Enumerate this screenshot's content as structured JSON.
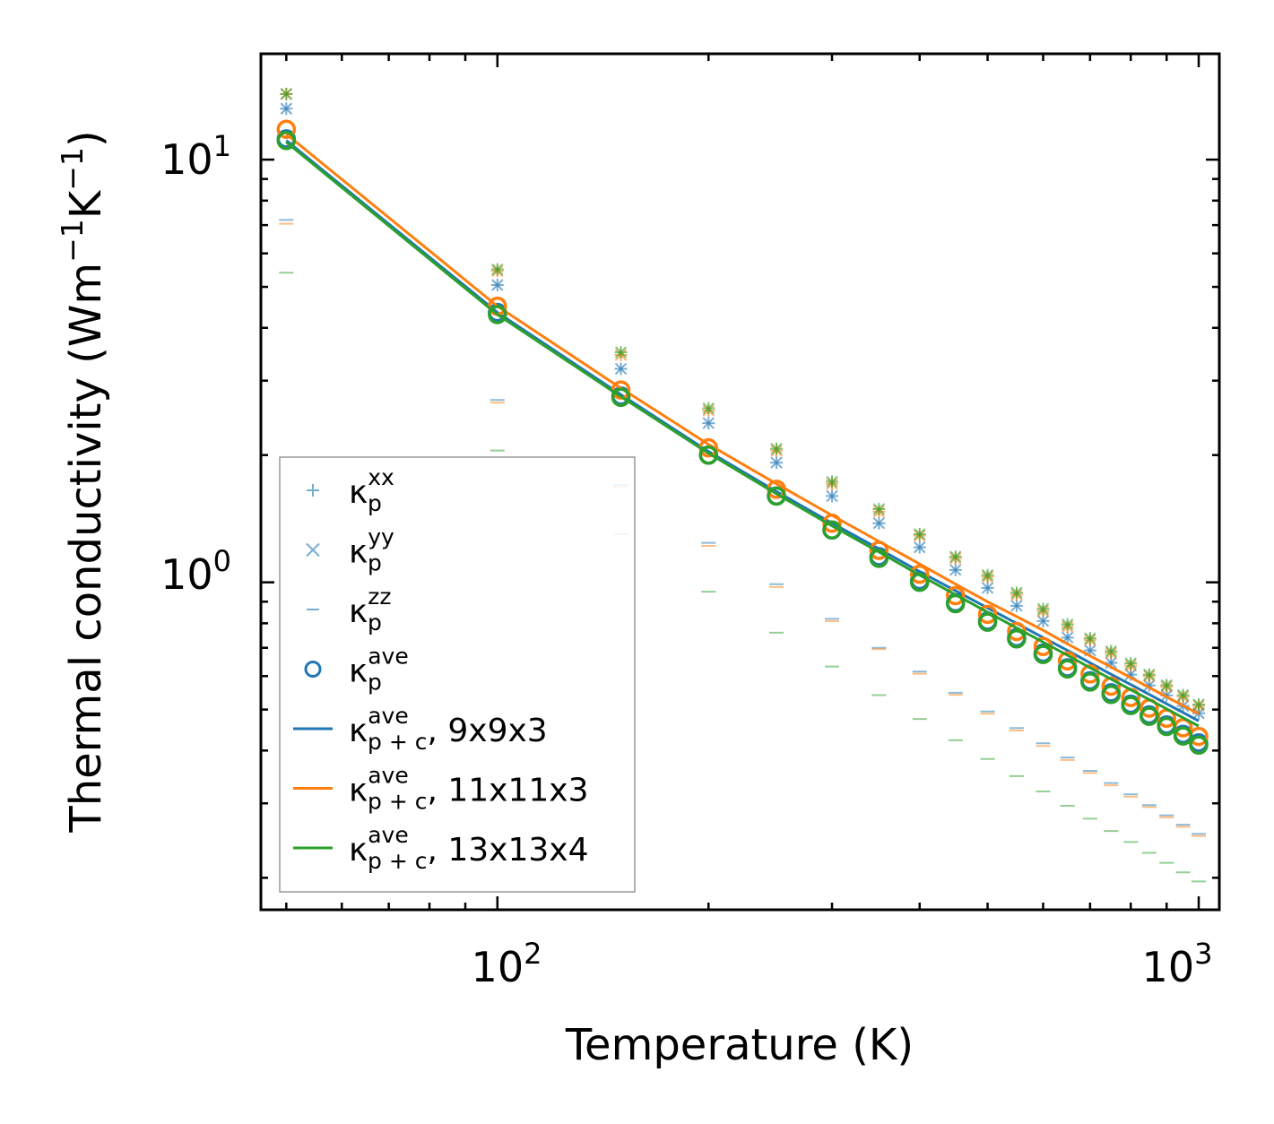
{
  "chart_data": {
    "type": "scatter",
    "title": "",
    "xlabel": "Temperature (K)",
    "ylabel_main": "Thermal conductivity (Wm",
    "ylabel_exp1": "−1",
    "ylabel_mid": "K",
    "ylabel_exp2": "−1",
    "ylabel_end": ")",
    "xscale": "log",
    "yscale": "log",
    "xlim": [
      46,
      1070
    ],
    "ylim": [
      0.168,
      17.8
    ],
    "x_tick_labels": [
      {
        "value": 100,
        "base": "10",
        "exp": "2"
      },
      {
        "value": 1000,
        "base": "10",
        "exp": "3"
      }
    ],
    "y_tick_labels": [
      {
        "value": 1,
        "base": "10",
        "exp": "0"
      },
      {
        "value": 10,
        "base": "10",
        "exp": "1"
      }
    ],
    "legend_location": "lower-left",
    "x": [
      50,
      100,
      150,
      200,
      250,
      300,
      350,
      400,
      450,
      500,
      550,
      600,
      650,
      700,
      750,
      800,
      850,
      900,
      950,
      1000
    ],
    "series": [
      {
        "name": "9x9x3",
        "color": "#1f77b4",
        "kxx": [
          13.2,
          5.05,
          3.2,
          2.38,
          1.92,
          1.6,
          1.38,
          1.21,
          1.07,
          0.97,
          0.88,
          0.81,
          0.74,
          0.69,
          0.645,
          0.605,
          0.57,
          0.54,
          0.51,
          0.49
        ],
        "kyy": [
          13.2,
          5.05,
          3.2,
          2.38,
          1.92,
          1.6,
          1.38,
          1.21,
          1.07,
          0.97,
          0.88,
          0.81,
          0.74,
          0.69,
          0.645,
          0.605,
          0.57,
          0.54,
          0.51,
          0.49
        ],
        "kzz": [
          7.2,
          2.7,
          1.7,
          1.24,
          0.99,
          0.82,
          0.7,
          0.615,
          0.548,
          0.495,
          0.452,
          0.416,
          0.385,
          0.358,
          0.335,
          0.315,
          0.297,
          0.281,
          0.267,
          0.254
        ],
        "kave": [
          11.2,
          4.35,
          2.76,
          2.0,
          1.6,
          1.33,
          1.15,
          1.01,
          0.895,
          0.81,
          0.74,
          0.68,
          0.628,
          0.585,
          0.548,
          0.515,
          0.486,
          0.46,
          0.437,
          0.417
        ],
        "kpc": [
          11.1,
          4.35,
          2.78,
          2.04,
          1.64,
          1.38,
          1.2,
          1.06,
          0.955,
          0.87,
          0.8,
          0.74,
          0.69,
          0.645,
          0.606,
          0.573,
          0.543,
          0.516,
          0.492,
          0.47
        ]
      },
      {
        "name": "11x11x3",
        "color": "#ff7f0e",
        "kxx": [
          14.3,
          5.45,
          3.45,
          2.55,
          2.05,
          1.71,
          1.47,
          1.29,
          1.14,
          1.03,
          0.935,
          0.855,
          0.785,
          0.73,
          0.68,
          0.635,
          0.6,
          0.566,
          0.536,
          0.51
        ],
        "kyy": [
          14.3,
          5.45,
          3.45,
          2.55,
          2.05,
          1.71,
          1.47,
          1.29,
          1.14,
          1.03,
          0.935,
          0.855,
          0.785,
          0.73,
          0.68,
          0.635,
          0.6,
          0.566,
          0.536,
          0.51
        ],
        "kzz": [
          7.05,
          2.66,
          1.68,
          1.22,
          0.975,
          0.81,
          0.695,
          0.608,
          0.542,
          0.489,
          0.446,
          0.41,
          0.38,
          0.354,
          0.331,
          0.311,
          0.294,
          0.278,
          0.264,
          0.251
        ],
        "kave": [
          11.8,
          4.5,
          2.85,
          2.08,
          1.66,
          1.38,
          1.19,
          1.045,
          0.93,
          0.84,
          0.765,
          0.705,
          0.652,
          0.607,
          0.568,
          0.534,
          0.504,
          0.477,
          0.453,
          0.432
        ],
        "kpc": [
          11.5,
          4.5,
          2.88,
          2.12,
          1.71,
          1.44,
          1.25,
          1.105,
          0.99,
          0.9,
          0.83,
          0.77,
          0.715,
          0.67,
          0.63,
          0.595,
          0.564,
          0.536,
          0.511,
          0.488
        ]
      },
      {
        "name": "13x13x4",
        "color": "#2ca02c",
        "kxx": [
          14.3,
          5.5,
          3.5,
          2.58,
          2.07,
          1.73,
          1.49,
          1.3,
          1.15,
          1.04,
          0.945,
          0.865,
          0.795,
          0.737,
          0.687,
          0.643,
          0.605,
          0.571,
          0.541,
          0.514
        ],
        "kyy": [
          14.3,
          5.5,
          3.5,
          2.58,
          2.07,
          1.73,
          1.49,
          1.3,
          1.15,
          1.04,
          0.945,
          0.865,
          0.795,
          0.737,
          0.687,
          0.643,
          0.605,
          0.571,
          0.541,
          0.514
        ],
        "kzz": [
          5.4,
          2.05,
          1.3,
          0.95,
          0.76,
          0.632,
          0.541,
          0.475,
          0.423,
          0.382,
          0.348,
          0.32,
          0.296,
          0.276,
          0.258,
          0.243,
          0.229,
          0.217,
          0.206,
          0.196
        ],
        "kave": [
          11.1,
          4.3,
          2.74,
          2.0,
          1.6,
          1.33,
          1.14,
          1.0,
          0.89,
          0.805,
          0.735,
          0.675,
          0.624,
          0.581,
          0.543,
          0.511,
          0.482,
          0.456,
          0.433,
          0.412
        ],
        "kpc": [
          11.0,
          4.3,
          2.75,
          2.02,
          1.62,
          1.36,
          1.18,
          1.04,
          0.935,
          0.85,
          0.78,
          0.722,
          0.672,
          0.628,
          0.59,
          0.557,
          0.528,
          0.502,
          0.478,
          0.457
        ]
      }
    ],
    "legend": [
      {
        "kind": "plus",
        "symbol": "κ",
        "sup": "xx",
        "sub": "p",
        "suffix": "",
        "color": "#1f77b4"
      },
      {
        "kind": "cross",
        "symbol": "κ",
        "sup": "yy",
        "sub": "p",
        "suffix": "",
        "color": "#1f77b4"
      },
      {
        "kind": "dash",
        "symbol": "κ",
        "sup": "zz",
        "sub": "p",
        "suffix": "",
        "color": "#1f77b4"
      },
      {
        "kind": "circle",
        "symbol": "κ",
        "sup": "ave",
        "sub": "p",
        "suffix": "",
        "color": "#1f77b4"
      },
      {
        "kind": "line",
        "symbol": "κ",
        "sup": "ave",
        "sub": "p + c",
        "suffix": ", 9x9x3",
        "color": "#1f77b4"
      },
      {
        "kind": "line",
        "symbol": "κ",
        "sup": "ave",
        "sub": "p + c",
        "suffix": ", 11x11x3",
        "color": "#ff7f0e"
      },
      {
        "kind": "line",
        "symbol": "κ",
        "sup": "ave",
        "sub": "p + c",
        "suffix": ", 13x13x4",
        "color": "#2ca02c"
      }
    ]
  }
}
